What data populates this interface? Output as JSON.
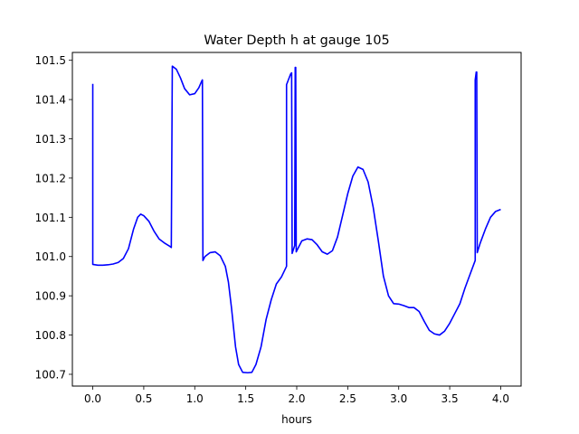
{
  "chart_data": {
    "type": "line",
    "title": "Water Depth h at gauge 105",
    "xlabel": "hours",
    "ylabel": "",
    "xlim": [
      -0.2,
      4.2
    ],
    "ylim": [
      100.67,
      101.52
    ],
    "x_ticks": [
      0.0,
      0.5,
      1.0,
      1.5,
      2.0,
      2.5,
      3.0,
      3.5,
      4.0
    ],
    "x_tick_labels": [
      "0.0",
      "0.5",
      "1.0",
      "1.5",
      "2.0",
      "2.5",
      "3.0",
      "3.5",
      "4.0"
    ],
    "y_ticks": [
      100.7,
      100.8,
      100.9,
      101.0,
      101.1,
      101.2,
      101.3,
      101.4,
      101.5
    ],
    "y_tick_labels": [
      "100.7",
      "100.8",
      "100.9",
      "101.0",
      "101.1",
      "101.2",
      "101.3",
      "101.4",
      "101.5"
    ],
    "grid": false,
    "series": [
      {
        "color": "#0000ff",
        "points": [
          [
            0.0,
            101.44
          ],
          [
            0.0,
            100.98
          ],
          [
            0.05,
            100.978
          ],
          [
            0.1,
            100.978
          ],
          [
            0.15,
            100.979
          ],
          [
            0.2,
            100.981
          ],
          [
            0.25,
            100.985
          ],
          [
            0.3,
            100.995
          ],
          [
            0.35,
            101.02
          ],
          [
            0.4,
            101.07
          ],
          [
            0.44,
            101.1
          ],
          [
            0.47,
            101.108
          ],
          [
            0.5,
            101.104
          ],
          [
            0.55,
            101.09
          ],
          [
            0.6,
            101.065
          ],
          [
            0.65,
            101.045
          ],
          [
            0.7,
            101.035
          ],
          [
            0.75,
            101.027
          ],
          [
            0.77,
            101.023
          ],
          [
            0.78,
            101.485
          ],
          [
            0.82,
            101.477
          ],
          [
            0.86,
            101.455
          ],
          [
            0.9,
            101.428
          ],
          [
            0.95,
            101.412
          ],
          [
            1.0,
            101.415
          ],
          [
            1.04,
            101.43
          ],
          [
            1.07,
            101.448
          ],
          [
            1.075,
            101.45
          ],
          [
            1.08,
            100.99
          ],
          [
            1.1,
            101.0
          ],
          [
            1.15,
            101.01
          ],
          [
            1.2,
            101.012
          ],
          [
            1.25,
            101.002
          ],
          [
            1.3,
            100.975
          ],
          [
            1.33,
            100.935
          ],
          [
            1.36,
            100.87
          ],
          [
            1.4,
            100.77
          ],
          [
            1.43,
            100.725
          ],
          [
            1.47,
            100.705
          ],
          [
            1.52,
            100.704
          ],
          [
            1.56,
            100.705
          ],
          [
            1.6,
            100.725
          ],
          [
            1.65,
            100.77
          ],
          [
            1.7,
            100.84
          ],
          [
            1.75,
            100.89
          ],
          [
            1.8,
            100.93
          ],
          [
            1.85,
            100.948
          ],
          [
            1.9,
            100.975
          ],
          [
            1.9,
            101.438
          ],
          [
            1.94,
            101.465
          ],
          [
            1.95,
            101.468
          ],
          [
            1.955,
            101.008
          ],
          [
            1.97,
            101.02
          ],
          [
            1.98,
            101.028
          ],
          [
            1.985,
            101.482
          ],
          [
            1.99,
            101.482
          ],
          [
            1.995,
            101.012
          ],
          [
            2.05,
            101.04
          ],
          [
            2.1,
            101.045
          ],
          [
            2.15,
            101.043
          ],
          [
            2.2,
            101.03
          ],
          [
            2.25,
            101.012
          ],
          [
            2.3,
            101.006
          ],
          [
            2.35,
            101.015
          ],
          [
            2.4,
            101.05
          ],
          [
            2.45,
            101.105
          ],
          [
            2.5,
            101.16
          ],
          [
            2.55,
            101.205
          ],
          [
            2.6,
            101.228
          ],
          [
            2.65,
            101.222
          ],
          [
            2.7,
            101.19
          ],
          [
            2.75,
            101.125
          ],
          [
            2.8,
            101.04
          ],
          [
            2.85,
            100.95
          ],
          [
            2.9,
            100.9
          ],
          [
            2.95,
            100.88
          ],
          [
            3.0,
            100.879
          ],
          [
            3.05,
            100.875
          ],
          [
            3.1,
            100.87
          ],
          [
            3.15,
            100.87
          ],
          [
            3.2,
            100.86
          ],
          [
            3.25,
            100.835
          ],
          [
            3.3,
            100.812
          ],
          [
            3.35,
            100.803
          ],
          [
            3.4,
            100.8
          ],
          [
            3.45,
            100.81
          ],
          [
            3.5,
            100.83
          ],
          [
            3.55,
            100.855
          ],
          [
            3.6,
            100.88
          ],
          [
            3.65,
            100.92
          ],
          [
            3.7,
            100.955
          ],
          [
            3.75,
            100.99
          ],
          [
            3.75,
            101.45
          ],
          [
            3.76,
            101.47
          ],
          [
            3.765,
            101.47
          ],
          [
            3.77,
            101.01
          ],
          [
            3.8,
            101.035
          ],
          [
            3.85,
            101.07
          ],
          [
            3.9,
            101.1
          ],
          [
            3.95,
            101.115
          ],
          [
            4.0,
            101.12
          ]
        ]
      }
    ]
  }
}
